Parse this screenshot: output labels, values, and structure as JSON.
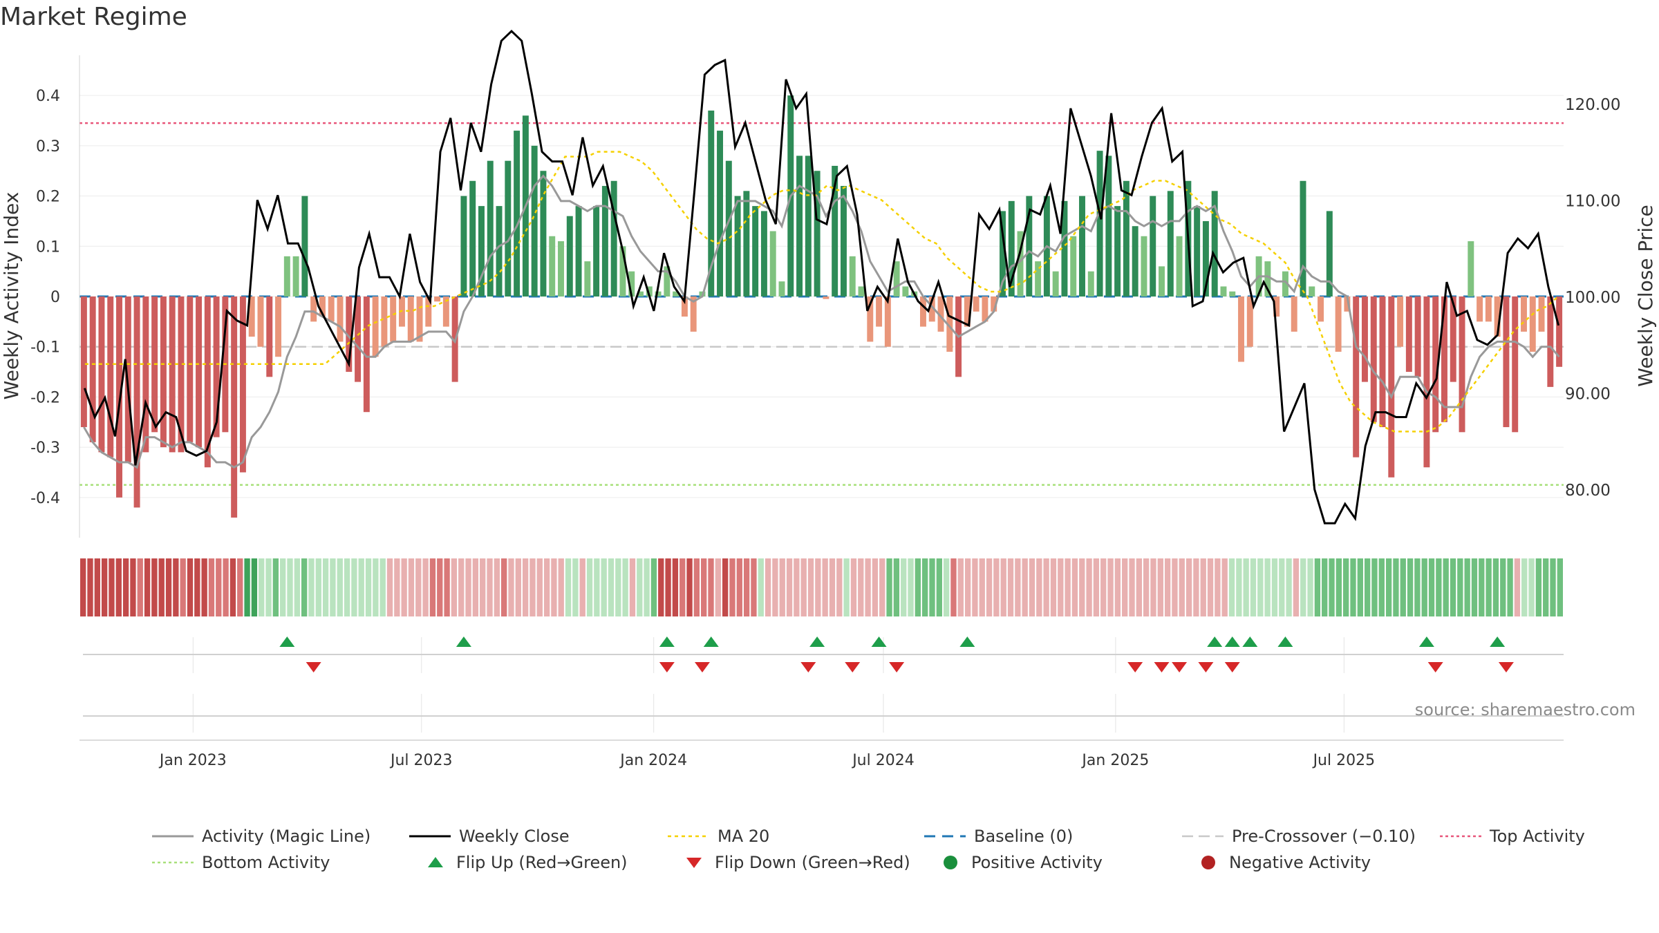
{
  "title": "Market Regime",
  "source": "source: sharemaestro.com",
  "colors": {
    "dark_green": "#2e8b57",
    "light_green": "#7fc27f",
    "dark_red": "#cd5c5c",
    "light_red": "#e9967a",
    "magic": "#999999",
    "close": "#000000",
    "ma": "#f5d000",
    "baseline": "#1f77b4",
    "pre": "#c8c8c8",
    "top": "#e8557a",
    "bottom": "#a8e07a",
    "flip_up": "#1e9e4a",
    "flip_down": "#d62728"
  },
  "chart_data": {
    "type": "bar",
    "title": "Market Regime",
    "x_start_week": "2022-10-03",
    "xticks": [
      "Jan 2023",
      "Jul 2023",
      "Jan 2024",
      "Jul 2024",
      "Jan 2025",
      "Jul 2025"
    ],
    "y_left": {
      "label": "Weekly Activity Index",
      "ticks": [
        "0.4",
        "0.3",
        "0.2",
        "0.1",
        "0",
        "-0.1",
        "-0.2",
        "-0.3",
        "-0.4"
      ],
      "range": [
        -0.48,
        0.48
      ]
    },
    "y_right": {
      "label": "Weekly Close Price",
      "ticks": [
        "120.00",
        "110.00",
        "100.00",
        "90.00",
        "80.00"
      ],
      "range": [
        75,
        125
      ]
    },
    "reference_lines": {
      "top_activity": 0.345,
      "bottom_activity": -0.375,
      "pre_crossover": -0.1,
      "baseline": 0
    },
    "activity": [
      -0.26,
      -0.29,
      -0.31,
      -0.32,
      -0.4,
      -0.33,
      -0.42,
      -0.31,
      -0.27,
      -0.3,
      -0.31,
      -0.31,
      -0.29,
      -0.3,
      -0.34,
      -0.28,
      -0.27,
      -0.44,
      -0.35,
      -0.08,
      -0.1,
      -0.16,
      -0.12,
      0.08,
      0.08,
      0.2,
      -0.05,
      -0.04,
      -0.05,
      -0.09,
      -0.15,
      -0.17,
      -0.23,
      -0.12,
      -0.1,
      -0.09,
      -0.06,
      -0.09,
      -0.09,
      -0.06,
      -0.01,
      -0.06,
      -0.17,
      0.2,
      0.23,
      0.18,
      0.27,
      0.18,
      0.27,
      0.33,
      0.36,
      0.3,
      0.25,
      0.12,
      0.11,
      0.16,
      0.18,
      0.07,
      0.18,
      0.22,
      0.23,
      0.1,
      0.05,
      0.01,
      0.02,
      0.01,
      0.06,
      0.01,
      -0.04,
      -0.07,
      0.01,
      0.37,
      0.33,
      0.27,
      0.2,
      0.21,
      0.18,
      0.17,
      0.13,
      0.03,
      0.4,
      0.28,
      0.28,
      0.25,
      -0.005,
      0.26,
      0.22,
      0.08,
      0.02,
      -0.09,
      -0.06,
      -0.1,
      0.07,
      0.02,
      0.01,
      -0.06,
      -0.05,
      -0.07,
      -0.11,
      -0.16,
      -0.06,
      -0.03,
      -0.05,
      -0.03,
      0.17,
      0.19,
      0.13,
      0.2,
      0.07,
      0.2,
      0.05,
      0.19,
      0.12,
      0.2,
      0.05,
      0.29,
      0.28,
      0.18,
      0.23,
      0.14,
      0.12,
      0.2,
      0.06,
      0.21,
      0.12,
      0.23,
      0.18,
      0.15,
      0.21,
      0.02,
      0.01,
      -0.13,
      -0.1,
      0.08,
      0.07,
      -0.04,
      0.05,
      -0.07,
      0.23,
      0.02,
      -0.05,
      0.17,
      -0.11,
      -0.03,
      -0.32,
      -0.17,
      -0.25,
      -0.26,
      -0.36,
      -0.1,
      -0.15,
      -0.16,
      -0.34,
      -0.27,
      -0.25,
      -0.17,
      -0.27,
      0.11,
      -0.05,
      -0.05,
      -0.08,
      -0.26,
      -0.27,
      -0.07,
      -0.11,
      -0.07,
      -0.18,
      -0.14
    ],
    "magic_line": [
      -0.26,
      -0.29,
      -0.31,
      -0.32,
      -0.33,
      -0.33,
      -0.34,
      -0.28,
      -0.28,
      -0.29,
      -0.3,
      -0.29,
      -0.29,
      -0.3,
      -0.31,
      -0.33,
      -0.33,
      -0.34,
      -0.33,
      -0.28,
      -0.26,
      -0.23,
      -0.19,
      -0.12,
      -0.08,
      -0.03,
      -0.03,
      -0.04,
      -0.05,
      -0.06,
      -0.08,
      -0.1,
      -0.12,
      -0.12,
      -0.1,
      -0.09,
      -0.09,
      -0.09,
      -0.08,
      -0.07,
      -0.07,
      -0.07,
      -0.09,
      -0.03,
      0.0,
      0.04,
      0.08,
      0.1,
      0.11,
      0.14,
      0.18,
      0.22,
      0.24,
      0.22,
      0.19,
      0.19,
      0.18,
      0.17,
      0.18,
      0.18,
      0.17,
      0.16,
      0.12,
      0.09,
      0.07,
      0.05,
      0.05,
      0.03,
      0.0,
      -0.01,
      0.0,
      0.06,
      0.11,
      0.15,
      0.19,
      0.19,
      0.19,
      0.18,
      0.17,
      0.14,
      0.2,
      0.22,
      0.21,
      0.2,
      0.16,
      0.19,
      0.2,
      0.17,
      0.13,
      0.07,
      0.04,
      0.01,
      0.02,
      0.03,
      0.03,
      0.0,
      -0.02,
      -0.04,
      -0.06,
      -0.08,
      -0.07,
      -0.06,
      -0.05,
      -0.03,
      0.03,
      0.06,
      0.07,
      0.09,
      0.08,
      0.1,
      0.09,
      0.12,
      0.13,
      0.14,
      0.13,
      0.17,
      0.18,
      0.17,
      0.17,
      0.15,
      0.14,
      0.15,
      0.14,
      0.15,
      0.15,
      0.17,
      0.18,
      0.17,
      0.18,
      0.13,
      0.09,
      0.04,
      0.02,
      0.04,
      0.04,
      0.03,
      0.03,
      0.01,
      0.06,
      0.04,
      0.03,
      0.03,
      0.01,
      0.0,
      -0.1,
      -0.12,
      -0.15,
      -0.17,
      -0.2,
      -0.16,
      -0.16,
      -0.16,
      -0.19,
      -0.2,
      -0.22,
      -0.22,
      -0.22,
      -0.16,
      -0.12,
      -0.1,
      -0.09,
      -0.09,
      -0.09,
      -0.1,
      -0.12,
      -0.1,
      -0.1,
      -0.12
    ],
    "weekly_close": [
      90.5,
      87.5,
      89.5,
      85.5,
      93.5,
      82.5,
      89.0,
      86.5,
      88.0,
      87.5,
      84.0,
      83.5,
      84.0,
      87.0,
      98.5,
      97.5,
      97.0,
      110.0,
      107.0,
      110.5,
      105.5,
      105.5,
      103.0,
      99.0,
      97.0,
      95.0,
      93.0,
      103.0,
      106.5,
      102.0,
      102.0,
      100.0,
      106.5,
      101.5,
      99.5,
      115.0,
      118.5,
      111.0,
      118.0,
      115.0,
      122.0,
      126.5,
      127.5,
      126.5,
      121.0,
      115.0,
      114.0,
      114.0,
      110.5,
      116.5,
      111.5,
      113.5,
      109.0,
      104.5,
      99.0,
      102.0,
      98.5,
      104.5,
      101.0,
      99.5,
      111.0,
      123.0,
      124.0,
      124.5,
      115.5,
      118.0,
      114.0,
      110.0,
      107.5,
      122.5,
      119.5,
      121.0,
      108.0,
      107.5,
      112.5,
      113.5,
      108.5,
      98.5,
      101.0,
      99.5,
      106.0,
      101.5,
      99.5,
      98.5,
      101.5,
      98.0,
      97.5,
      97.0,
      108.5,
      107.0,
      109.0,
      101.0,
      104.5,
      109.0,
      108.5,
      111.5,
      106.5,
      119.5,
      116.0,
      112.5,
      108.0,
      119.0,
      111.0,
      110.5,
      114.5,
      118.0,
      119.5,
      114.0,
      115.0,
      99.0,
      99.5,
      104.5,
      102.5,
      103.5,
      104.0,
      99.0,
      101.5,
      99.5,
      86.0,
      88.5,
      91.0,
      80.0,
      76.5,
      76.5,
      78.5,
      77.0,
      84.5,
      88.0,
      88.0,
      87.5,
      87.5,
      91.0,
      89.5,
      91.5,
      101.5,
      98.0,
      98.5,
      95.5,
      95.0,
      96.0,
      104.5,
      106.0,
      105.0,
      106.5,
      101.0,
      97.0
    ],
    "ma20": [
      93.0,
      93.0,
      93.0,
      93.0,
      93.0,
      93.0,
      93.0,
      93.0,
      93.0,
      93.0,
      93.0,
      93.0,
      93.0,
      93.0,
      93.0,
      93.0,
      93.0,
      93.0,
      93.0,
      93.0,
      93.0,
      93.0,
      93.0,
      94.0,
      95.0,
      96.0,
      97.0,
      97.5,
      98.0,
      98.5,
      98.5,
      99.0,
      99.0,
      99.5,
      100.0,
      100.5,
      101.0,
      101.5,
      102.5,
      104.0,
      106.0,
      108.0,
      110.5,
      112.5,
      114.5,
      114.5,
      114.5,
      115.0,
      115.0,
      115.0,
      114.5,
      114.0,
      113.0,
      111.5,
      110.0,
      108.5,
      107.0,
      106.0,
      105.5,
      106.0,
      107.0,
      108.5,
      109.5,
      110.5,
      111.0,
      111.0,
      110.5,
      110.5,
      111.5,
      111.0,
      111.5,
      111.0,
      110.5,
      110.0,
      109.0,
      108.0,
      107.0,
      106.0,
      105.5,
      104.0,
      103.0,
      102.0,
      101.0,
      100.5,
      100.5,
      101.0,
      101.5,
      102.5,
      103.5,
      104.5,
      105.5,
      107.0,
      108.5,
      109.0,
      109.5,
      110.0,
      111.0,
      111.5,
      112.0,
      112.0,
      111.5,
      111.0,
      110.0,
      109.0,
      108.0,
      107.5,
      106.5,
      106.0,
      105.5,
      104.5,
      103.5,
      101.5,
      100.0,
      97.0,
      94.0,
      91.0,
      89.0,
      88.0,
      87.0,
      86.5,
      86.0,
      86.0,
      86.0,
      86.0,
      86.5,
      87.5,
      89.0,
      90.5,
      92.0,
      93.5,
      95.0,
      96.5,
      97.5,
      98.5,
      99.0,
      100.0
    ],
    "colorband_tiers": [
      3,
      3,
      3,
      3,
      3,
      3,
      3,
      3,
      2,
      3,
      3,
      3,
      3,
      3,
      2,
      3,
      3,
      3,
      2,
      2,
      2,
      3,
      2,
      -3,
      -3,
      -1,
      -1,
      -2,
      -1,
      -1,
      -1,
      -2,
      -1,
      -1,
      -1,
      -1,
      -1,
      -1,
      -1,
      -1,
      -1,
      -1,
      -1,
      1,
      1,
      1,
      1,
      1,
      1,
      2,
      2,
      2,
      1,
      1,
      1,
      1,
      1,
      1,
      1,
      2,
      1,
      1,
      1,
      1,
      1,
      1,
      1,
      1,
      -1,
      -1,
      1,
      -1,
      -1,
      -1,
      -1,
      -1,
      -1,
      1,
      -1,
      -1,
      -2,
      3,
      3,
      3,
      2,
      3,
      2,
      2,
      2,
      1,
      3,
      2,
      2,
      2,
      2,
      -1,
      1,
      1,
      1,
      1,
      1,
      1,
      1,
      1,
      1,
      1,
      1,
      -1,
      1,
      1,
      1,
      1,
      1,
      -2,
      -2,
      -1,
      -1,
      -2,
      -2,
      -2,
      -2,
      -1,
      2,
      1,
      1,
      1,
      1,
      1,
      1,
      1,
      1,
      1,
      1,
      1,
      1,
      1,
      1,
      1,
      1,
      1,
      1,
      1,
      1,
      1,
      1,
      1,
      1,
      1,
      1,
      1,
      1,
      1,
      1,
      1,
      1,
      1,
      1,
      1,
      1,
      1,
      1,
      -1,
      -1,
      -1,
      -1,
      -1,
      -1,
      -1,
      -1,
      -1,
      1,
      -1,
      -1,
      -2,
      -2,
      -2,
      -2,
      -2,
      -2,
      -2,
      -2,
      -2,
      -2,
      -2,
      -2,
      -2,
      -2,
      -2,
      -2,
      -2,
      -2,
      -2,
      -2,
      -2,
      -2,
      -2,
      -2,
      -2,
      -2,
      -2,
      -2,
      1,
      -1,
      -1,
      -2,
      -2,
      -2,
      -2
    ],
    "flip_up_idx": [
      23,
      43,
      66,
      71,
      83,
      90,
      100,
      128,
      130,
      132,
      136,
      152,
      160
    ],
    "flip_down_idx": [
      26,
      66,
      70,
      82,
      87,
      92,
      119,
      122,
      124,
      127,
      130,
      153,
      161
    ],
    "series_names": {
      "magic": "Activity (Magic Line)",
      "close": "Weekly Close",
      "ma": "MA 20"
    }
  },
  "legend": [
    {
      "key": "magic",
      "label": "Activity (Magic Line)"
    },
    {
      "key": "close",
      "label": "Weekly Close"
    },
    {
      "key": "ma",
      "label": "MA 20"
    },
    {
      "key": "baseline",
      "label": "Baseline (0)"
    },
    {
      "key": "pre",
      "label": "Pre-Crossover (−0.10)"
    },
    {
      "key": "top",
      "label": "Top Activity"
    },
    {
      "key": "bottom",
      "label": "Bottom Activity"
    },
    {
      "key": "flip_up",
      "label": "Flip Up (Red→Green)"
    },
    {
      "key": "flip_down",
      "label": "Flip Down (Green→Red)"
    },
    {
      "key": "pos",
      "label": "Positive Activity"
    },
    {
      "key": "neg",
      "label": "Negative Activity"
    }
  ]
}
